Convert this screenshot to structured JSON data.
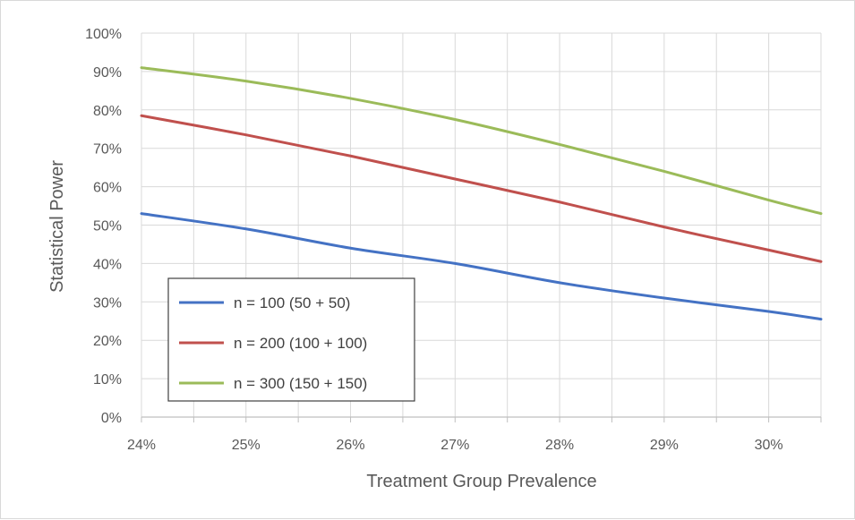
{
  "chart_data": {
    "type": "line",
    "title": "",
    "xlabel": "Treatment Group Prevalence",
    "ylabel": "Statistical Power",
    "xlim": [
      0.24,
      0.305
    ],
    "ylim": [
      0,
      1
    ],
    "x_ticks": [
      0.24,
      0.25,
      0.26,
      0.27,
      0.28,
      0.29,
      0.3
    ],
    "x_tick_labels": [
      "24%",
      "25%",
      "26%",
      "27%",
      "28%",
      "29%",
      "30%"
    ],
    "y_ticks": [
      0,
      0.1,
      0.2,
      0.3,
      0.4,
      0.5,
      0.6,
      0.7,
      0.8,
      0.9,
      1.0
    ],
    "y_tick_labels": [
      "0%",
      "10%",
      "20%",
      "30%",
      "40%",
      "50%",
      "60%",
      "70%",
      "80%",
      "90%",
      "100%"
    ],
    "grid": true,
    "legend_position": "bottom-left",
    "x": [
      0.24,
      0.25,
      0.26,
      0.27,
      0.28,
      0.29,
      0.3,
      0.305
    ],
    "series": [
      {
        "name": "n = 100 (50 + 50)",
        "color": "#4472c4",
        "values": [
          0.53,
          0.49,
          0.44,
          0.4,
          0.35,
          0.31,
          0.275,
          0.255
        ]
      },
      {
        "name": "n = 200 (100 + 100)",
        "color": "#c0504d",
        "values": [
          0.785,
          0.735,
          0.68,
          0.62,
          0.56,
          0.495,
          0.435,
          0.405
        ]
      },
      {
        "name": "n = 300 (150 + 150)",
        "color": "#9bbb59",
        "values": [
          0.91,
          0.875,
          0.83,
          0.775,
          0.71,
          0.64,
          0.565,
          0.53
        ]
      }
    ]
  }
}
